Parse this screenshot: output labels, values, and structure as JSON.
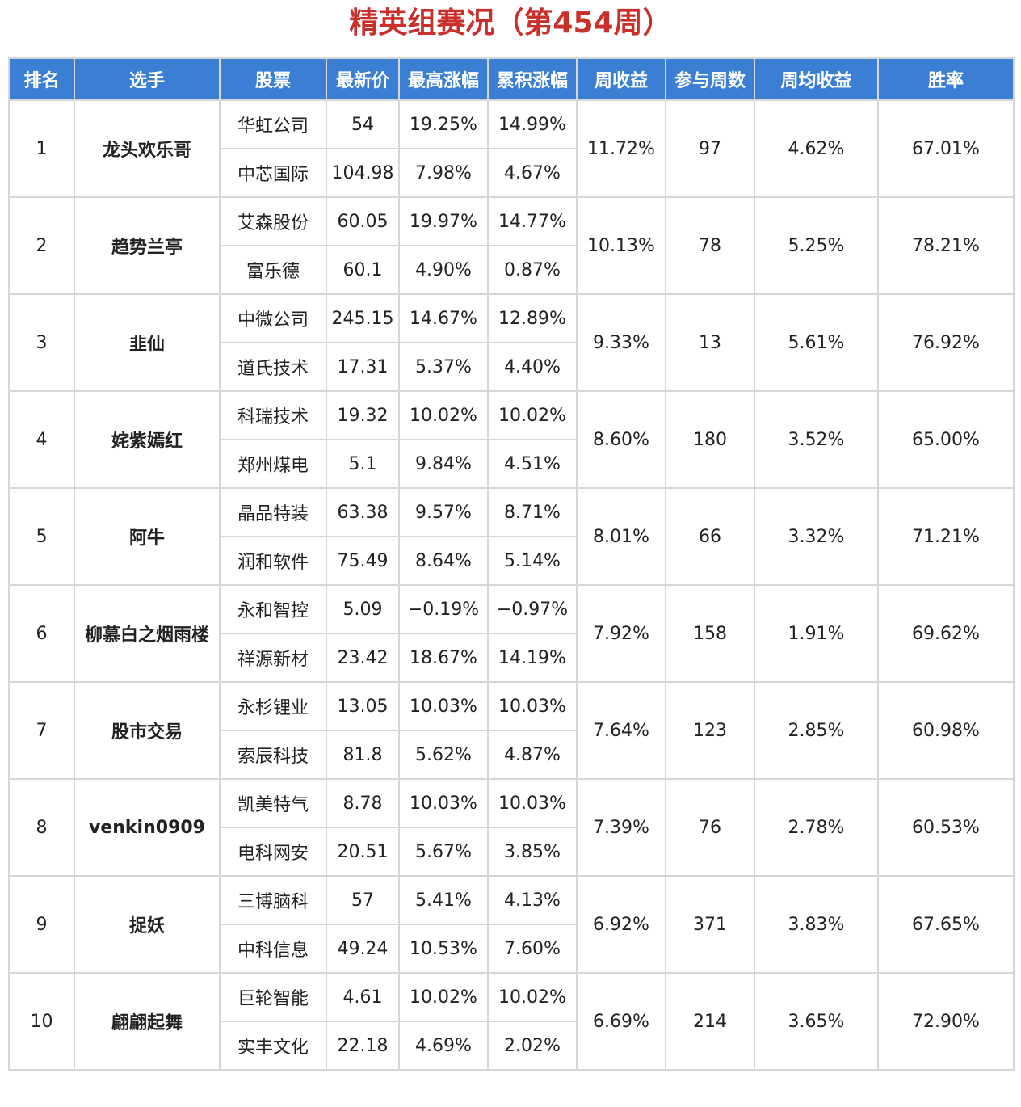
{
  "title": "精英组赛况（第454周）",
  "colors": {
    "header_bg": "#3b7fd4",
    "title": "#c9302c",
    "up": "#d7363b",
    "down": "#2e8b2e",
    "player": "#2554a8",
    "stock": "#2d63b5"
  },
  "columns": [
    "排名",
    "选手",
    "股票",
    "最新价",
    "最高涨幅",
    "累积涨幅",
    "周收益",
    "参与周数",
    "周均收益",
    "胜率"
  ],
  "rows": [
    {
      "rank": "1",
      "player": "龙头欢乐哥",
      "stocks": [
        {
          "name": "华虹公司",
          "price": "54",
          "max_gain": "19.25%",
          "cum_gain": "14.99%"
        },
        {
          "name": "中芯国际",
          "price": "104.98",
          "max_gain": "7.98%",
          "cum_gain": "4.67%"
        }
      ],
      "week_return": "11.72%",
      "weeks": "97",
      "avg_return": "4.62%",
      "win_rate": "67.01%"
    },
    {
      "rank": "2",
      "player": "趋势兰亭",
      "stocks": [
        {
          "name": "艾森股份",
          "price": "60.05",
          "max_gain": "19.97%",
          "cum_gain": "14.77%"
        },
        {
          "name": "富乐德",
          "price": "60.1",
          "max_gain": "4.90%",
          "cum_gain": "0.87%"
        }
      ],
      "week_return": "10.13%",
      "weeks": "78",
      "avg_return": "5.25%",
      "win_rate": "78.21%"
    },
    {
      "rank": "3",
      "player": "韭仙",
      "stocks": [
        {
          "name": "中微公司",
          "price": "245.15",
          "max_gain": "14.67%",
          "cum_gain": "12.89%"
        },
        {
          "name": "道氏技术",
          "price": "17.31",
          "max_gain": "5.37%",
          "cum_gain": "4.40%"
        }
      ],
      "week_return": "9.33%",
      "weeks": "13",
      "avg_return": "5.61%",
      "win_rate": "76.92%"
    },
    {
      "rank": "4",
      "player": "姹紫嫣红",
      "stocks": [
        {
          "name": "科瑞技术",
          "price": "19.32",
          "max_gain": "10.02%",
          "cum_gain": "10.02%"
        },
        {
          "name": "郑州煤电",
          "price": "5.1",
          "max_gain": "9.84%",
          "cum_gain": "4.51%"
        }
      ],
      "week_return": "8.60%",
      "weeks": "180",
      "avg_return": "3.52%",
      "win_rate": "65.00%"
    },
    {
      "rank": "5",
      "player": "阿牛",
      "stocks": [
        {
          "name": "晶品特装",
          "price": "63.38",
          "max_gain": "9.57%",
          "cum_gain": "8.71%"
        },
        {
          "name": "润和软件",
          "price": "75.49",
          "max_gain": "8.64%",
          "cum_gain": "5.14%"
        }
      ],
      "week_return": "8.01%",
      "weeks": "66",
      "avg_return": "3.32%",
      "win_rate": "71.21%"
    },
    {
      "rank": "6",
      "player": "柳慕白之烟雨楼",
      "stocks": [
        {
          "name": "永和智控",
          "price": "5.09",
          "max_gain": "−0.19%",
          "cum_gain": "−0.97%"
        },
        {
          "name": "祥源新材",
          "price": "23.42",
          "max_gain": "18.67%",
          "cum_gain": "14.19%"
        }
      ],
      "week_return": "7.92%",
      "weeks": "158",
      "avg_return": "1.91%",
      "win_rate": "69.62%"
    },
    {
      "rank": "7",
      "player": "股市交易",
      "stocks": [
        {
          "name": "永杉锂业",
          "price": "13.05",
          "max_gain": "10.03%",
          "cum_gain": "10.03%"
        },
        {
          "name": "索辰科技",
          "price": "81.8",
          "max_gain": "5.62%",
          "cum_gain": "4.87%"
        }
      ],
      "week_return": "7.64%",
      "weeks": "123",
      "avg_return": "2.85%",
      "win_rate": "60.98%"
    },
    {
      "rank": "8",
      "player": "venkin0909",
      "stocks": [
        {
          "name": "凯美特气",
          "price": "8.78",
          "max_gain": "10.03%",
          "cum_gain": "10.03%"
        },
        {
          "name": "电科网安",
          "price": "20.51",
          "max_gain": "5.67%",
          "cum_gain": "3.85%"
        }
      ],
      "week_return": "7.39%",
      "weeks": "76",
      "avg_return": "2.78%",
      "win_rate": "60.53%"
    },
    {
      "rank": "9",
      "player": "捉妖",
      "stocks": [
        {
          "name": "三博脑科",
          "price": "57",
          "max_gain": "5.41%",
          "cum_gain": "4.13%"
        },
        {
          "name": "中科信息",
          "price": "49.24",
          "max_gain": "10.53%",
          "cum_gain": "7.60%"
        }
      ],
      "week_return": "6.92%",
      "weeks": "371",
      "avg_return": "3.83%",
      "win_rate": "67.65%"
    },
    {
      "rank": "10",
      "player": "翩翩起舞",
      "stocks": [
        {
          "name": "巨轮智能",
          "price": "4.61",
          "max_gain": "10.02%",
          "cum_gain": "10.02%"
        },
        {
          "name": "实丰文化",
          "price": "22.18",
          "max_gain": "4.69%",
          "cum_gain": "2.02%"
        }
      ],
      "week_return": "6.69%",
      "weeks": "214",
      "avg_return": "3.65%",
      "win_rate": "72.90%"
    }
  ]
}
